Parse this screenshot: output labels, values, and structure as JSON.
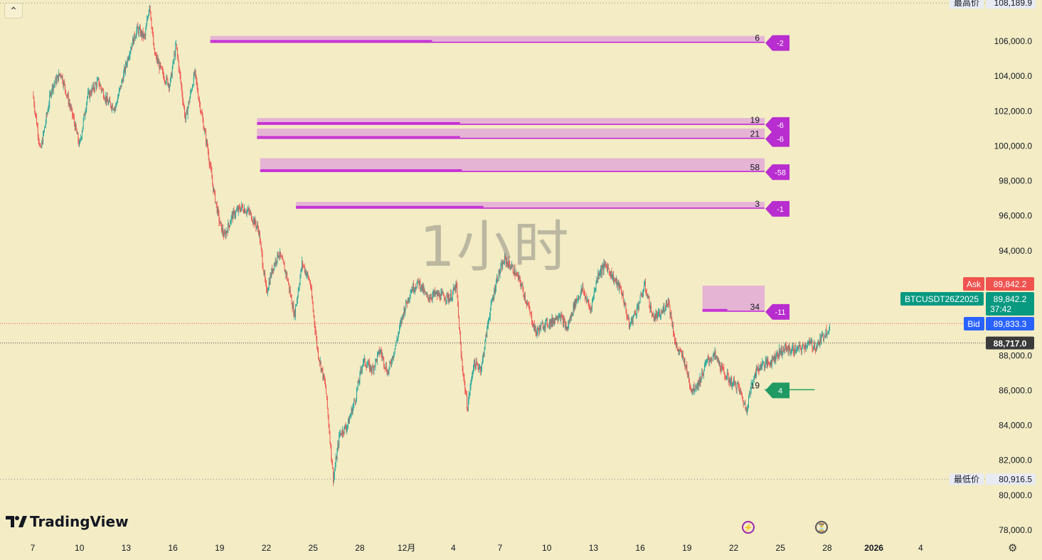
{
  "ui": {
    "collapse_icon": "chevron-up-icon",
    "collapse_glyph": "⌃",
    "watermark_text": "1小时",
    "logo_text": "TradingView",
    "flash_icon_glyph": "⚡",
    "timer_icon_glyph": "⏳",
    "settings_glyph": "⚙"
  },
  "colors": {
    "background": "#f3ecc4",
    "up_candle": "#26a69a",
    "down_candle": "#ef5350",
    "magenta_zone": "#e3aed6",
    "magenta_line": "#c224d4",
    "magenta_badge": "#b82dcf",
    "green_zone": "#a8dba8",
    "green_line": "#20a060",
    "green_badge": "#1f9a63",
    "ask": "#ef5350",
    "bid": "#2962ff",
    "symbol_price": "#089981",
    "last_price_bg": "#3a3a3a"
  },
  "chart_data": {
    "type": "candlestick",
    "timeframe": "1小时",
    "y_axis_ticks": [
      "106,000.0",
      "104,000.0",
      "102,000.0",
      "100,000.0",
      "98,000.0",
      "96,000.0",
      "94,000.0",
      "88,000.0",
      "86,000.0",
      "84,000.0",
      "82,000.0",
      "80,000.0",
      "78,000.0"
    ],
    "ylim": [
      77000,
      108500
    ],
    "x_axis_ticks": [
      {
        "label": "7",
        "bold": false
      },
      {
        "label": "10",
        "bold": false
      },
      {
        "label": "13",
        "bold": false
      },
      {
        "label": "16",
        "bold": false
      },
      {
        "label": "19",
        "bold": false
      },
      {
        "label": "22",
        "bold": false
      },
      {
        "label": "25",
        "bold": false
      },
      {
        "label": "28",
        "bold": false
      },
      {
        "label": "12月",
        "bold": false
      },
      {
        "label": "4",
        "bold": false
      },
      {
        "label": "7",
        "bold": false
      },
      {
        "label": "10",
        "bold": false
      },
      {
        "label": "13",
        "bold": false
      },
      {
        "label": "16",
        "bold": false
      },
      {
        "label": "19",
        "bold": false
      },
      {
        "label": "22",
        "bold": false
      },
      {
        "label": "25",
        "bold": false
      },
      {
        "label": "28",
        "bold": false
      },
      {
        "label": "2026",
        "bold": true
      },
      {
        "label": "4",
        "bold": false
      }
    ],
    "highest": {
      "label": "最高价",
      "value": "108,189.9",
      "price": 108189.9
    },
    "lowest": {
      "label": "最低价",
      "value": "80,916.5",
      "price": 80916.5
    },
    "ask": {
      "label": "Ask",
      "value": "89,842.2",
      "price": 89842.2
    },
    "symbol": {
      "label": "BTCUSDT26Z2025",
      "value": "89,842.2",
      "countdown": "37:42",
      "price": 89842.2
    },
    "bid": {
      "label": "Bid",
      "value": "89,833.3",
      "price": 89833.3
    },
    "last_line": {
      "value": "88,717.0",
      "price": 88717.0
    },
    "zones": [
      {
        "color": "magenta",
        "top": 106300,
        "bottom": 105900,
        "left_count": "6",
        "badge": "-2",
        "start_day": 11.4
      },
      {
        "color": "magenta",
        "top": 101600,
        "bottom": 101200,
        "left_count": "19",
        "badge": "-6",
        "start_day": 14.4
      },
      {
        "color": "magenta",
        "top": 101000,
        "bottom": 100400,
        "left_count": "21",
        "badge": "-6",
        "start_day": 14.4
      },
      {
        "color": "magenta",
        "top": 99300,
        "bottom": 98500,
        "left_count": "58",
        "badge": "-58",
        "start_day": 14.6
      },
      {
        "color": "magenta",
        "top": 96800,
        "bottom": 96400,
        "left_count": "3",
        "badge": "-1",
        "start_day": 16.9
      },
      {
        "color": "magenta",
        "top": 92000,
        "bottom": 90500,
        "left_count": "34",
        "badge": "-11",
        "start_day": 43.0
      },
      {
        "color": "green",
        "top": 86900,
        "bottom": 86000,
        "left_count": "19",
        "badge": "4",
        "start_day": 50.2
      }
    ],
    "price_path": [
      [
        0,
        103000
      ],
      [
        0.5,
        99700
      ],
      [
        1.2,
        103300
      ],
      [
        1.8,
        104200
      ],
      [
        2.6,
        101600
      ],
      [
        3.0,
        100000
      ],
      [
        3.5,
        102800
      ],
      [
        4.2,
        103700
      ],
      [
        4.8,
        102500
      ],
      [
        5.3,
        102200
      ],
      [
        5.7,
        103600
      ],
      [
        6.2,
        105400
      ],
      [
        6.7,
        106700
      ],
      [
        7.2,
        106200
      ],
      [
        7.5,
        108189.9
      ],
      [
        7.8,
        105300
      ],
      [
        8.4,
        104000
      ],
      [
        8.8,
        103500
      ],
      [
        9.2,
        105800
      ],
      [
        9.8,
        101500
      ],
      [
        10.4,
        104200
      ],
      [
        10.7,
        102500
      ],
      [
        11.2,
        100000
      ],
      [
        11.6,
        97500
      ],
      [
        12.0,
        95600
      ],
      [
        12.3,
        94800
      ],
      [
        12.8,
        96000
      ],
      [
        13.4,
        96500
      ],
      [
        13.9,
        96200
      ],
      [
        14.5,
        95200
      ],
      [
        15.0,
        91600
      ],
      [
        15.4,
        93000
      ],
      [
        15.8,
        93900
      ],
      [
        16.3,
        92600
      ],
      [
        16.8,
        90300
      ],
      [
        17.3,
        93300
      ],
      [
        17.8,
        92200
      ],
      [
        18.3,
        88200
      ],
      [
        18.8,
        86200
      ],
      [
        19.3,
        80916.5
      ],
      [
        19.7,
        83500
      ],
      [
        20.2,
        84000
      ],
      [
        20.7,
        85500
      ],
      [
        21.2,
        87700
      ],
      [
        21.8,
        87200
      ],
      [
        22.3,
        88300
      ],
      [
        22.8,
        87000
      ],
      [
        23.3,
        88600
      ],
      [
        23.8,
        90500
      ],
      [
        24.3,
        91800
      ],
      [
        24.8,
        92200
      ],
      [
        25.3,
        91300
      ],
      [
        25.8,
        91500
      ],
      [
        26.3,
        91400
      ],
      [
        26.8,
        91300
      ],
      [
        27.2,
        92000
      ],
      [
        27.5,
        88000
      ],
      [
        27.9,
        85000
      ],
      [
        28.3,
        87500
      ],
      [
        28.8,
        87300
      ],
      [
        29.3,
        90300
      ],
      [
        29.8,
        92400
      ],
      [
        30.3,
        93500
      ],
      [
        30.8,
        93000
      ],
      [
        31.3,
        92200
      ],
      [
        31.8,
        90800
      ],
      [
        32.3,
        89300
      ],
      [
        32.8,
        89800
      ],
      [
        33.3,
        89900
      ],
      [
        33.8,
        90400
      ],
      [
        34.3,
        89500
      ],
      [
        34.8,
        91000
      ],
      [
        35.3,
        91800
      ],
      [
        35.8,
        90600
      ],
      [
        36.3,
        92700
      ],
      [
        36.8,
        93200
      ],
      [
        37.3,
        92400
      ],
      [
        37.8,
        91700
      ],
      [
        38.3,
        89700
      ],
      [
        38.8,
        90700
      ],
      [
        39.3,
        92000
      ],
      [
        39.8,
        90200
      ],
      [
        40.3,
        90300
      ],
      [
        40.8,
        91200
      ],
      [
        41.3,
        88500
      ],
      [
        41.8,
        87800
      ],
      [
        42.3,
        86000
      ],
      [
        42.8,
        86500
      ],
      [
        43.3,
        87700
      ],
      [
        43.8,
        88000
      ],
      [
        44.3,
        87100
      ],
      [
        44.8,
        86500
      ],
      [
        45.3,
        86200
      ],
      [
        45.8,
        84900
      ],
      [
        46.3,
        86900
      ],
      [
        46.8,
        87500
      ],
      [
        47.3,
        87600
      ],
      [
        47.8,
        88100
      ],
      [
        48.3,
        88400
      ],
      [
        48.8,
        88300
      ],
      [
        49.3,
        88400
      ],
      [
        49.8,
        88700
      ],
      [
        50.3,
        88500
      ],
      [
        50.8,
        89200
      ],
      [
        51.2,
        89700
      ]
    ]
  }
}
